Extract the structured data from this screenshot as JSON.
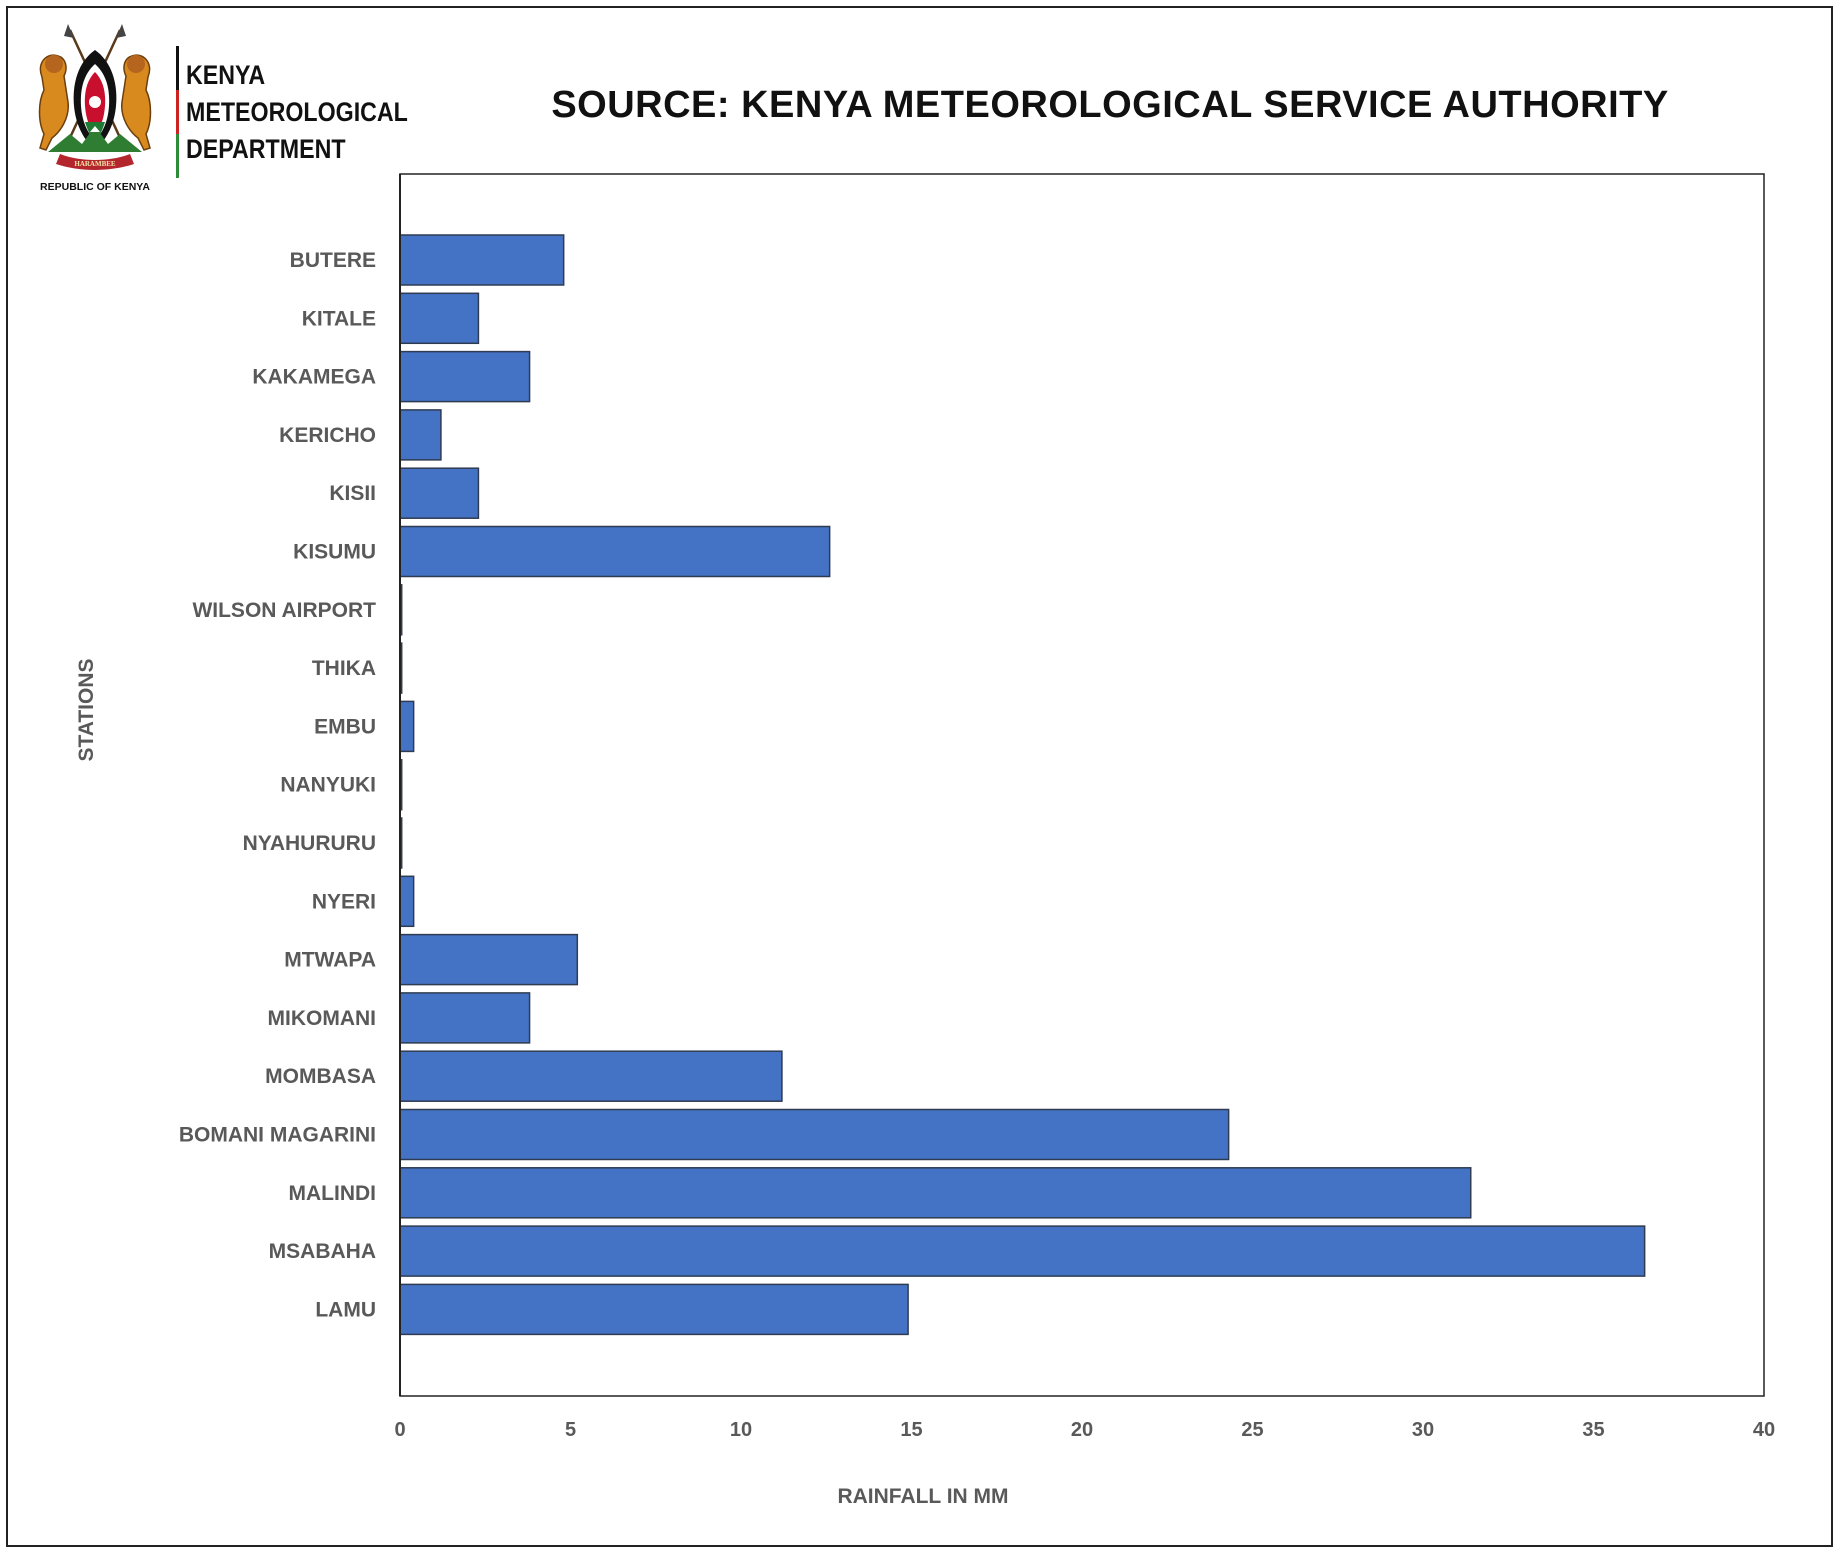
{
  "header": {
    "emblem_caption": "REPUBLIC OF KENYA",
    "emblem_motto": "HARAMBEE",
    "department_lines": [
      "KENYA",
      "METEOROLOGICAL",
      "DEPARTMENT"
    ]
  },
  "colors": {
    "bar_fill": "#4472C4",
    "bar_stroke": "#2F3B52",
    "label_text": "#595959",
    "frame": "#222222"
  },
  "chart_data": {
    "type": "bar",
    "orientation": "horizontal",
    "title": "SOURCE: KENYA METEOROLOGICAL SERVICE AUTHORITY",
    "xlabel": "RAINFALL IN MM",
    "ylabel": "STATIONS",
    "xlim": [
      0,
      40
    ],
    "x_ticks": [
      0,
      5,
      10,
      15,
      20,
      25,
      30,
      35,
      40
    ],
    "grid": false,
    "legend": "none",
    "categories": [
      "BUTERE",
      "KITALE",
      "KAKAMEGA",
      "KERICHO",
      "KISII",
      "KISUMU",
      "WILSON AIRPORT",
      "THIKA",
      "EMBU",
      "NANYUKI",
      "NYAHURURU",
      "NYERI",
      "MTWAPA",
      "MIKOMANI",
      "MOMBASA",
      "BOMANI MAGARINI",
      "MALINDI",
      "MSABAHA",
      "LAMU"
    ],
    "values": [
      4.8,
      2.3,
      3.8,
      1.2,
      2.3,
      12.6,
      0.05,
      0.05,
      0.4,
      0.05,
      0.05,
      0.4,
      5.2,
      3.8,
      11.2,
      24.3,
      31.4,
      36.5,
      14.9
    ]
  }
}
